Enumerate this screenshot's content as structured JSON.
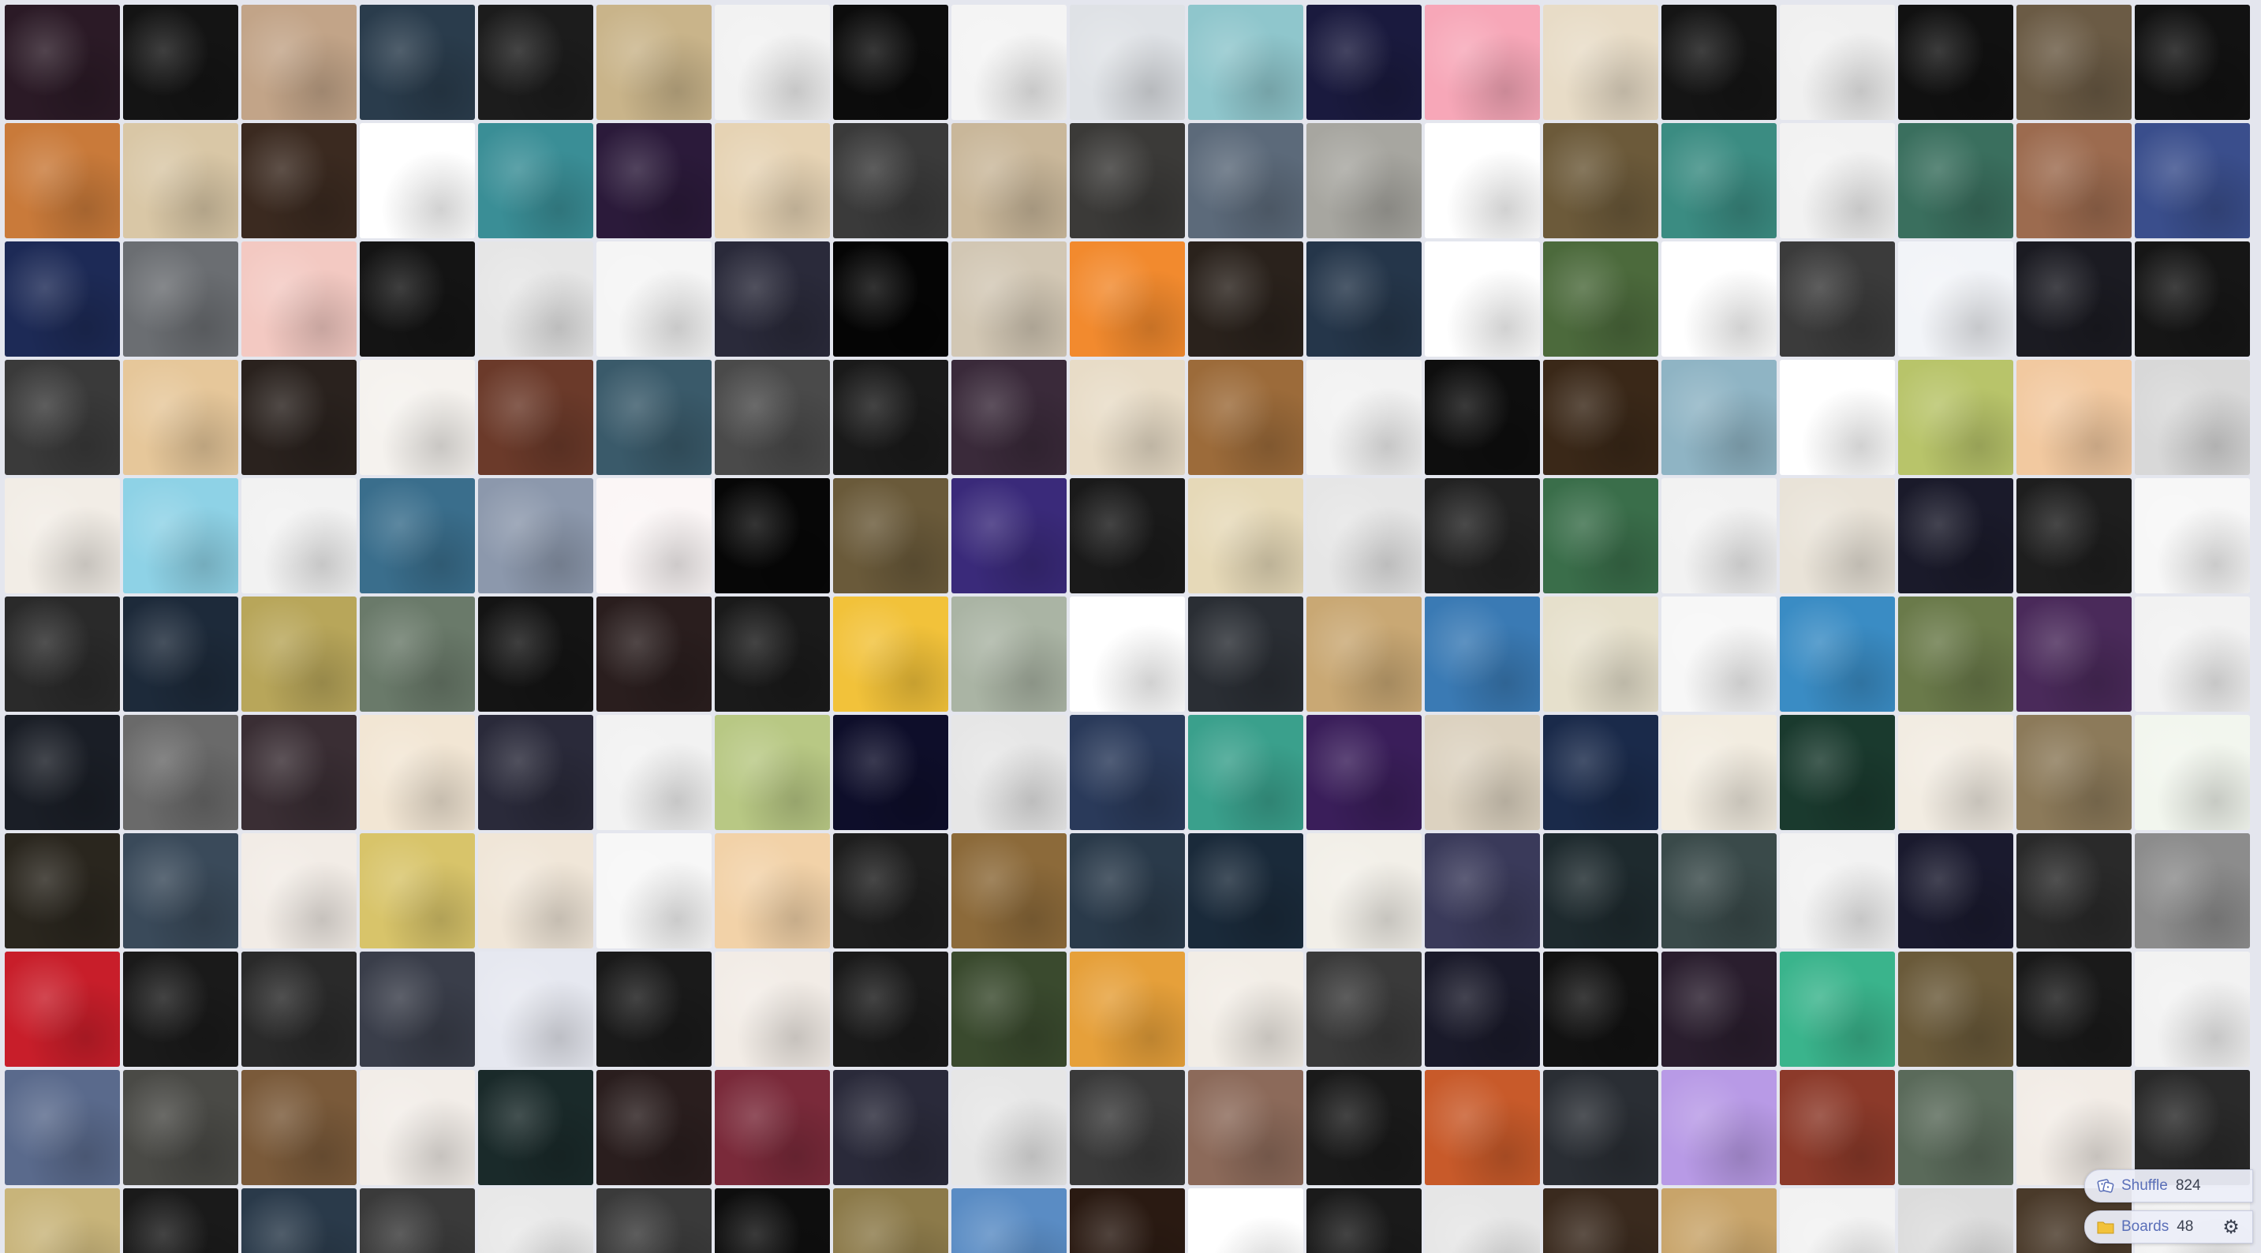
{
  "controls": {
    "shuffle_label": "Shuffle",
    "shuffle_count": "824",
    "boards_label": "Boards",
    "boards_count": "48",
    "shuffle_icon": "dice-icon",
    "boards_icon": "folder-icon",
    "settings_icon": "gear-icon"
  },
  "tiles": [
    [
      "#2b1a26",
      "#141414",
      "#c2a488",
      "#2a3c4c",
      "#1c1c1c",
      "#c9b48a",
      "#f2f2f2",
      "#0c0c0c",
      "#f4f4f4",
      "#dfe2e6",
      "#8fc6cc",
      "#1a1a3e",
      "#f7a7b8",
      "#e8dcc7",
      "#151515",
      "#f0f0f0",
      "#111111",
      "#6b5b45",
      "#121212"
    ],
    [
      "#c97a3a",
      "#d9c7a6",
      "#3b2a20",
      "#ffffff",
      "#3a8e96",
      "#2b1a3a",
      "#e6d3b4",
      "#3a3a3a",
      "#c9b79a",
      "#3b3a38",
      "#5c6a7a",
      "#a7a6a0",
      "#ffffff",
      "#6c5a3a",
      "#3b8c82",
      "#f2f2f2",
      "#3a6f5e",
      "#9c6b4f",
      "#3a4e8c"
    ],
    [
      "#1d2a56",
      "#6b6e72",
      "#f3c9c2",
      "#141414",
      "#e6e6e6",
      "#f5f5f5",
      "#2a2a3a",
      "#050505",
      "#d2c7b4",
      "#f28a2e",
      "#2a221c",
      "#25364a",
      "#ffffff",
      "#4c6a3c",
      "#ffffff",
      "#3b3b3b",
      "#f2f4f8",
      "#1b1b22",
      "#161616"
    ],
    [
      "#3a3a3a",
      "#e6c79a",
      "#2a221e",
      "#f5f2ee",
      "#6b3a2a",
      "#3a5a6a",
      "#4a4a4a",
      "#1a1a1a",
      "#3a2a3a",
      "#e8dcc7",
      "#9c6b3a",
      "#f2f2f2",
      "#0e0e0e",
      "#3a2818",
      "#8fb4c4",
      "#ffffff",
      "#b8c46a",
      "#f2c9a0",
      "#d8d8d8"
    ],
    [
      "#f2ede6",
      "#8ed2e6",
      "#f2f2f2",
      "#3a6e8c",
      "#8c98ac",
      "#fbf6f6",
      "#070707",
      "#6a5a3a",
      "#3a2a7a",
      "#1a1a1a",
      "#e6d9b8",
      "#e6e6e6",
      "#222222",
      "#3a6e4a",
      "#f2f2f2",
      "#e9e3d8",
      "#1a1a2a",
      "#1e1e1e",
      "#f7f7f7"
    ],
    [
      "#2a2a2a",
      "#1d2a3a",
      "#b8a65a",
      "#6a7a6a",
      "#141414",
      "#2a1e1e",
      "#1a1a1a",
      "#f2c23a",
      "#aab4a4",
      "#ffffff",
      "#2a2e34",
      "#c9a874",
      "#3a7ab4",
      "#e6e0cc",
      "#f7f7f7",
      "#3a8cc4",
      "#6a7a4a",
      "#4a2a5a",
      "#f2f2f2"
    ],
    [
      "#1a1e26",
      "#6a6a6a",
      "#3a2e34",
      "#f2e6d4",
      "#2a2a3a",
      "#f2f2f2",
      "#b8c884",
      "#0e0e2a",
      "#e6e6e6",
      "#2a3a5a",
      "#3aa08c",
      "#3a1e5a",
      "#dcd2c0",
      "#1a2a4a",
      "#f2ece0",
      "#1a3a2e",
      "#f2ece2",
      "#8c7a5a",
      "#f2f6ee"
    ],
    [
      "#2a261e",
      "#3a4a5a",
      "#f2ece6",
      "#d8c46a",
      "#f0e6d8",
      "#f7f7f7",
      "#f2d2a8",
      "#1e1e1e",
      "#8c6a3a",
      "#2a3a4a",
      "#1a2a3a",
      "#f2efe8",
      "#3a3a5a",
      "#1e2a2e",
      "#3a4a4a",
      "#f2f2f2",
      "#1a1a2e",
      "#2a2a2a",
      "#8c8c8c"
    ],
    [
      "#c81e2a",
      "#1a1a1a",
      "#2a2a2a",
      "#3a3e4a",
      "#e6e8f0",
      "#1a1a1a",
      "#f2ece6",
      "#1a1a1a",
      "#3a4a2e",
      "#e6a03a",
      "#f2ede6",
      "#3a3a3a",
      "#1a1a2a",
      "#121212",
      "#2a1e2e",
      "#3ab48c",
      "#6a5a3a",
      "#1a1a1a",
      "#f2f2f2"
    ],
    [
      "#5a6a8c",
      "#4a4a46",
      "#7a5a3a",
      "#f2ede8",
      "#1a2a2a",
      "#2a1e1e",
      "#7a2a3a",
      "#2a2a3a",
      "#e6e6e6",
      "#3a3a3a",
      "#8c6a5a",
      "#1a1a1a",
      "#c85a2a",
      "#2a2e34",
      "#b89ae6",
      "#8c3a2a",
      "#5a6a5a",
      "#f2ece6",
      "#2a2a2a"
    ],
    [
      "#c8b47a",
      "#1a1a1a",
      "#2a3a4a",
      "#3a3a3a",
      "#e8e8e8",
      "#3a3a3a",
      "#0e0e0e",
      "#8c7a4a",
      "#5a8cc4",
      "#2a1a12",
      "#ffffff",
      "#1a1a1a",
      "#e6e6e6",
      "#3a2a1e",
      "#c8a46a",
      "#f2f2f2",
      "#dcdcdc",
      "#4a3a2a",
      "#f2f2f2"
    ]
  ]
}
